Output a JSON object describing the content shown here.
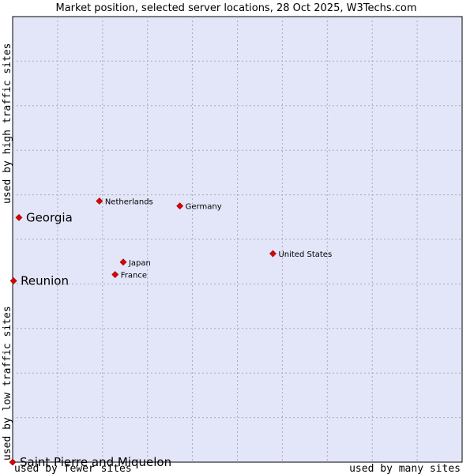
{
  "chart_data": {
    "type": "scatter",
    "title": "Market position, selected server locations, 28 Oct 2025, W3Techs.com",
    "xlabel_left": "used by fewer sites",
    "xlabel_right": "used by many sites",
    "ylabel_bottom": "used by low traffic sites",
    "ylabel_top": "used by high traffic sites",
    "xlim": [
      0,
      100
    ],
    "ylim": [
      0,
      100
    ],
    "grid": true,
    "grid_steps_x": 10,
    "grid_steps_y": 10,
    "background_color": "#e3e5f9",
    "point_color": "#e00000",
    "points": [
      {
        "name": "Netherlands",
        "x": 19.3,
        "y": 58.6,
        "size": "small"
      },
      {
        "name": "Germany",
        "x": 37.2,
        "y": 57.5,
        "size": "small"
      },
      {
        "name": "Georgia",
        "x": 1.4,
        "y": 54.9,
        "size": "large"
      },
      {
        "name": "United States",
        "x": 57.9,
        "y": 46.8,
        "size": "small"
      },
      {
        "name": "Japan",
        "x": 24.6,
        "y": 44.9,
        "size": "small"
      },
      {
        "name": "France",
        "x": 22.8,
        "y": 42.1,
        "size": "small"
      },
      {
        "name": "Reunion",
        "x": 0.2,
        "y": 40.7,
        "size": "large"
      },
      {
        "name": "Saint Pierre and Miquelon",
        "x": 0.0,
        "y": 0.0,
        "size": "large"
      }
    ]
  }
}
